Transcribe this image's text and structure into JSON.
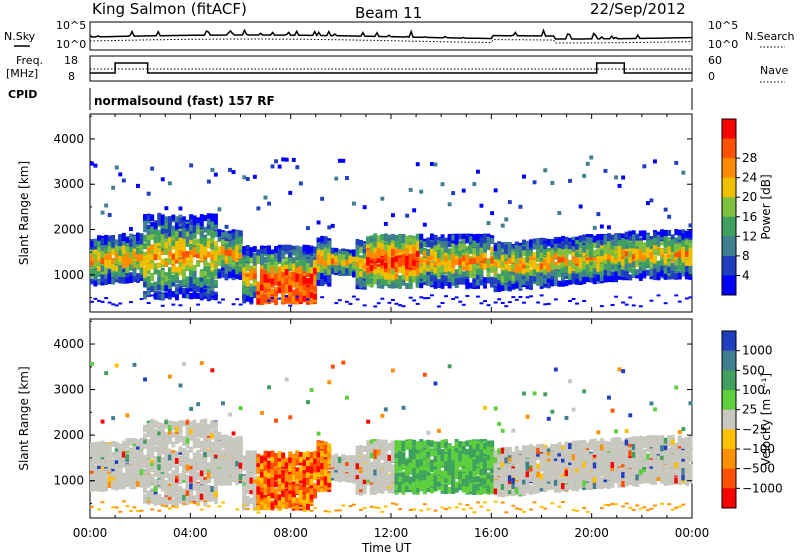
{
  "header": {
    "station": "King Salmon (fitACF)",
    "beam": "Beam 11",
    "date": "22/Sep/2012"
  },
  "top_panels": {
    "nsky_label": "N.Sky",
    "nsearch_label": "N.Search",
    "noise_ticks_left": [
      "10^5",
      "10^0"
    ],
    "noise_ticks_right": [
      "10^5",
      "10^0"
    ],
    "freq_label_1": "Freq.",
    "freq_label_2": "[MHz]",
    "freq_ticks": [
      "18",
      "8"
    ],
    "nave_label": "Nave",
    "nave_ticks": [
      "60",
      "0"
    ],
    "cpid_label": "CPID",
    "cpid_value": "normalsound (fast) 157 RF"
  },
  "chart_data": [
    {
      "type": "heatmap",
      "name": "power",
      "ylabel": "Slant Range [km]",
      "ylim": [
        180,
        4550
      ],
      "yticks": [
        "1000",
        "2000",
        "3000",
        "4000"
      ],
      "colorbar_label": "Power [dB]",
      "colorbar_ticks": [
        "4",
        "8",
        "12",
        "16",
        "20",
        "24",
        "28"
      ],
      "colors": [
        "#0000ff",
        "#1f3fbf",
        "#3f7f8f",
        "#3fa05f",
        "#7fbf3f",
        "#f0c000",
        "#ff8c00",
        "#ff5000",
        "#ff0000"
      ]
    },
    {
      "type": "heatmap",
      "name": "velocity",
      "ylabel": "Slant Range [km]",
      "ylim": [
        180,
        4550
      ],
      "yticks": [
        "1000",
        "2000",
        "3000",
        "4000"
      ],
      "colorbar_label": "Velocity [m s⁻¹]",
      "colorbar_ticks": [
        "1000",
        "500",
        "100",
        "25",
        "−25",
        "−100",
        "−500",
        "−1000"
      ],
      "colors": [
        "#1f3fbf",
        "#3f7f8f",
        "#3fa05f",
        "#5fcf3f",
        "#c8c8c0",
        "#ffc000",
        "#ff9000",
        "#ff5000",
        "#ff0000"
      ]
    }
  ],
  "xaxis": {
    "label": "Time UT",
    "ticks": [
      "00:00",
      "04:00",
      "08:00",
      "12:00",
      "16:00",
      "20:00",
      "00:00"
    ]
  }
}
